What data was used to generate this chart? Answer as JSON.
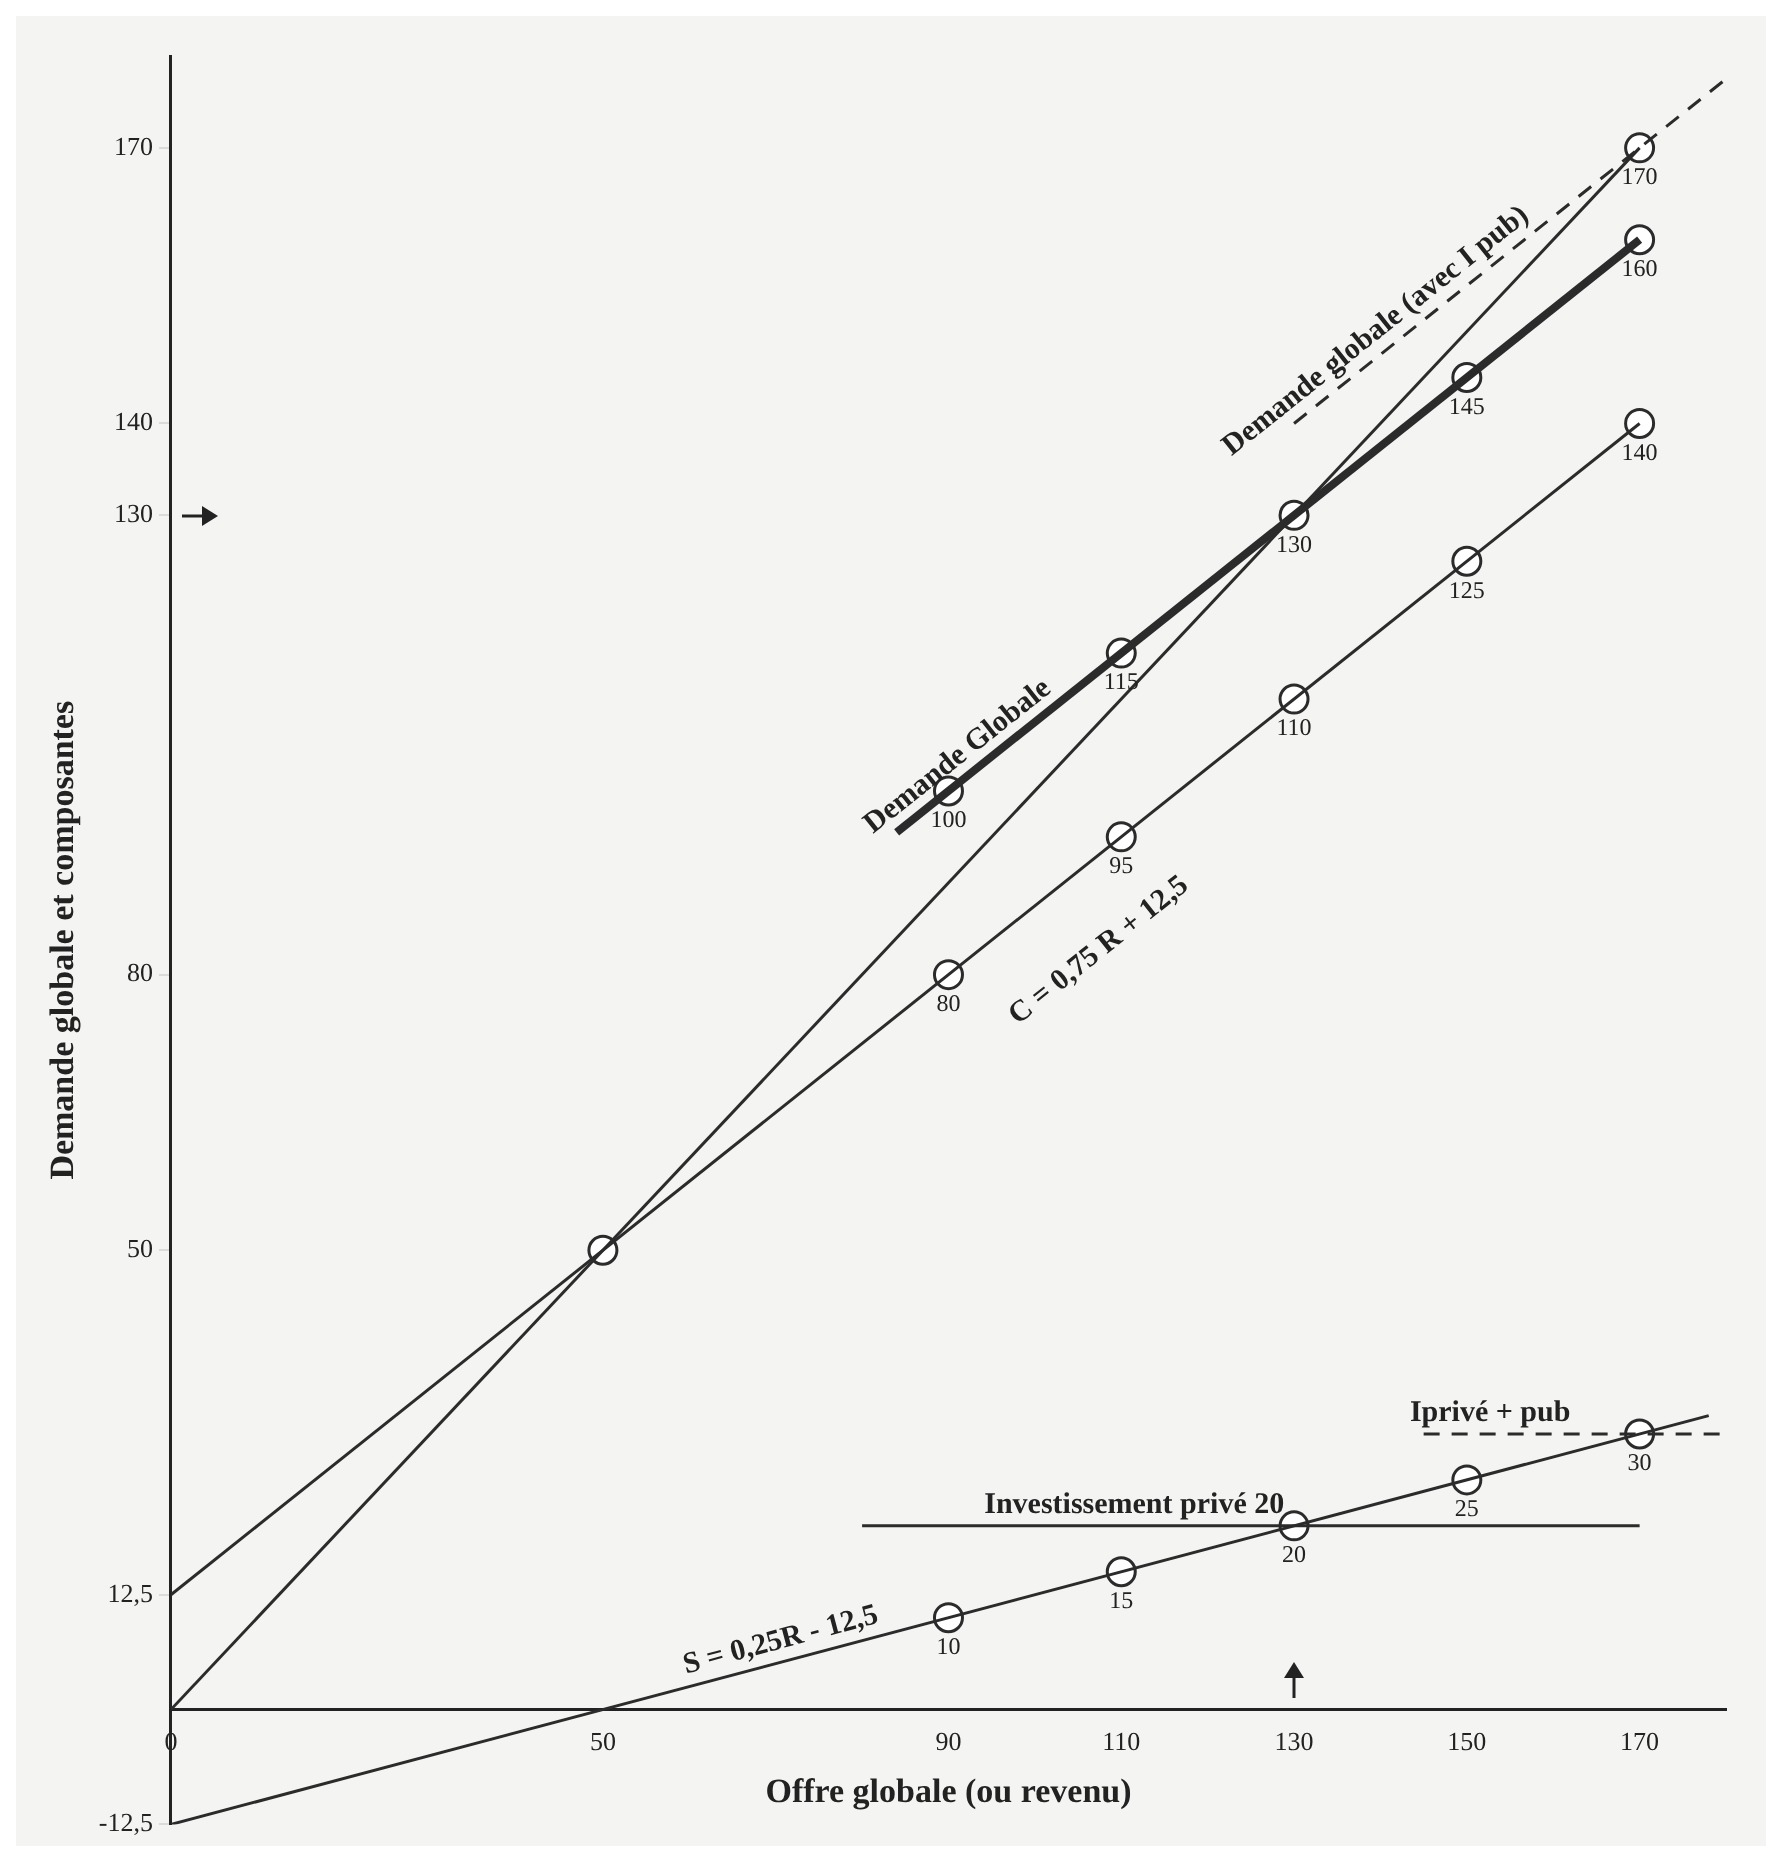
{
  "chart_data": {
    "type": "line",
    "xlabel": "Offre globale (ou revenu)",
    "ylabel": "Demande globale et composantes",
    "xlim": [
      0,
      180
    ],
    "ylim": [
      -12.5,
      180
    ],
    "xticks": [
      0,
      50,
      90,
      110,
      130,
      150,
      170
    ],
    "yticks": [
      {
        "value": -12.5,
        "label": "-12,5"
      },
      {
        "value": 12.5,
        "label": "12,5"
      },
      50,
      80,
      130,
      140,
      170
    ],
    "grid": false,
    "legend": false,
    "marker": "none",
    "line_style": "solid",
    "series": [
      {
        "color": "#2b2b2b",
        "x": [
          0,
          170
        ],
        "values": [
          0,
          170
        ]
      },
      {
        "name": "C = 0,75 R + 12,5",
        "color": "#2b2b2b",
        "x": [
          0,
          170
        ],
        "values": [
          12.5,
          140
        ]
      },
      {
        "name": "Demande Globale",
        "color": "#2b2b2b",
        "x": [
          84,
          170
        ],
        "values": [
          95.5,
          160
        ]
      },
      {
        "name": "Demande globale (avec I pub)",
        "color": "#2b2b2b",
        "line_style": "dashed",
        "x": [
          130,
          180
        ],
        "values": [
          140,
          177.5
        ]
      },
      {
        "name": "S = 0,25R - 12,5",
        "color": "#2b2b2b",
        "x": [
          0,
          178
        ],
        "values": [
          -12.5,
          32
        ]
      },
      {
        "name": "Investissement privé 20",
        "color": "#2b2b2b",
        "x": [
          80,
          170
        ],
        "values": [
          20,
          20
        ]
      },
      {
        "name": "Iprivé + pub",
        "color": "#2b2b2b",
        "line_style": "dashed",
        "x": [
          145,
          180
        ],
        "values": [
          30,
          30
        ]
      },
      {
        "type": "scatter",
        "marker": "circle",
        "color": "#2b2b2b",
        "x": [
          50,
          90,
          110,
          130,
          150,
          170,
          90,
          110,
          130,
          150,
          170,
          170,
          90,
          110,
          130,
          150,
          170
        ],
        "values": [
          50,
          80,
          95,
          110,
          125,
          140,
          100,
          115,
          130,
          145,
          160,
          170,
          10,
          15,
          20,
          25,
          30
        ],
        "value_labels": [
          null,
          "80",
          "95",
          "110",
          "125",
          "140",
          "100",
          "115",
          "130",
          "145",
          "160",
          "170",
          "10",
          "15",
          "20",
          "25",
          "30"
        ]
      }
    ]
  }
}
